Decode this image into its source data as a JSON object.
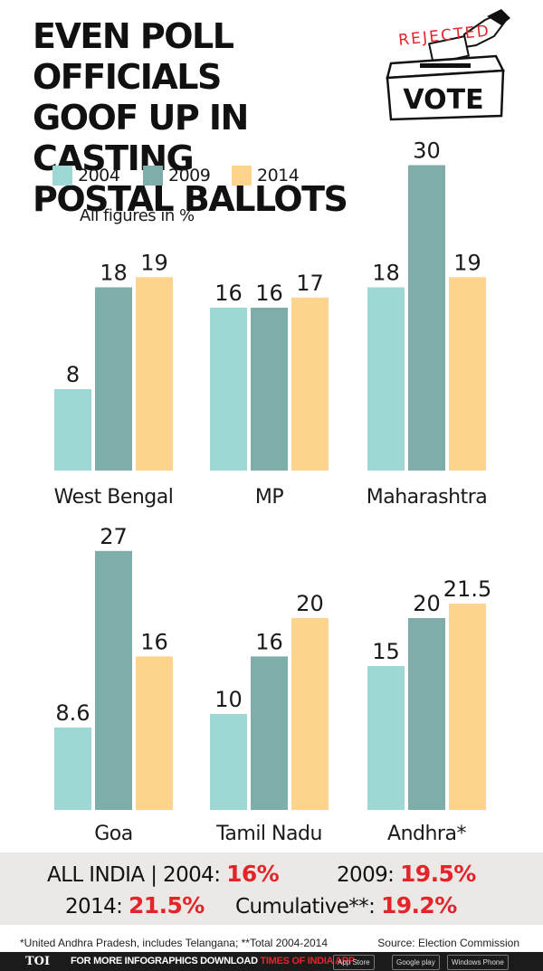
{
  "title_lines": [
    "EVEN POLL OFFICIALS",
    "GOOF UP IN CASTING",
    "POSTAL BALLOTS"
  ],
  "logo": {
    "stamp_text": "REJECTED",
    "box_text": "VOTE",
    "icon": "ballot-box-icon"
  },
  "colors": {
    "2004": "#9dd8d5",
    "2009": "#7fadaa",
    "2014": "#fdd48e",
    "highlight": "#e3252b",
    "band": "#ebe8e6"
  },
  "legend": [
    "2004",
    "2009",
    "2014"
  ],
  "note": "All figures in %",
  "chart_data": {
    "type": "bar",
    "series": [
      "2004",
      "2009",
      "2014"
    ],
    "panels": [
      {
        "category": "West Bengal",
        "values": [
          8,
          18,
          19
        ],
        "labels": [
          "8",
          "18",
          "19"
        ]
      },
      {
        "category": "MP",
        "values": [
          16,
          16,
          17
        ],
        "labels": [
          "16",
          "16",
          "17"
        ]
      },
      {
        "category": "Maharashtra",
        "values": [
          18,
          30,
          19
        ],
        "labels": [
          "18",
          "30",
          "19"
        ]
      },
      {
        "category": "Goa",
        "values": [
          8.6,
          27,
          16
        ],
        "labels": [
          "8.6",
          "27",
          "16"
        ]
      },
      {
        "category": "Tamil Nadu",
        "values": [
          10,
          16,
          20
        ],
        "labels": [
          "10",
          "16",
          "20"
        ]
      },
      {
        "category": "Andhra*",
        "values": [
          15,
          20,
          21.5
        ],
        "labels": [
          "15",
          "20",
          "21.5"
        ]
      }
    ]
  },
  "all_india": {
    "lead": "ALL INDIA | 2004: ",
    "v2004": "16%",
    "l2009": "2009: ",
    "v2009": "19.5%",
    "l2014": "2014: ",
    "v2014": "21.5%",
    "lcum": "Cumulative**: ",
    "vcum": "19.2%"
  },
  "footnote": "*United Andhra Pradesh, includes Telangana; **Total 2004-2014",
  "source": "Source: Election Commission",
  "footer": {
    "brand": "TOI",
    "message_white": "FOR MORE  INFOGRAPHICS DOWNLOAD ",
    "message_red": "TIMES OF INDIA APP",
    "badges": [
      "App Store",
      "Google play",
      "Windows Phone"
    ]
  }
}
